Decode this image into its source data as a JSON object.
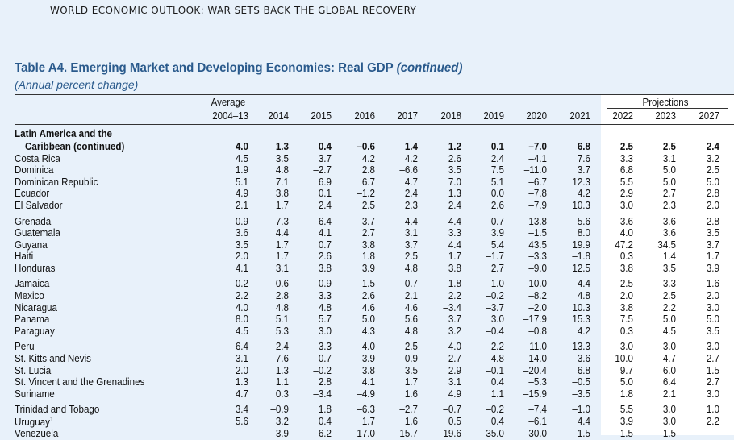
{
  "running_head": "WORLD ECONOMIC OUTLOOK: WAR SETS BACK THE GLOBAL RECOVERY",
  "table": {
    "title": "Table A4. Emerging Market and Developing Economies: Real GDP",
    "title_suffix": "(continued)",
    "subtitle": "(Annual percent change)",
    "header": {
      "average_label": "Average",
      "projections_label": "Projections",
      "columns": [
        "2004–13",
        "2014",
        "2015",
        "2016",
        "2017",
        "2018",
        "2019",
        "2020",
        "2021",
        "2022",
        "2023",
        "2027"
      ]
    },
    "group_label": "Latin America and the",
    "rows": [
      {
        "name": "Caribbean (continued)",
        "bold": true,
        "indent": true,
        "values": [
          "4.0",
          "1.3",
          "0.4",
          "–0.6",
          "1.4",
          "1.2",
          "0.1",
          "–7.0",
          "6.8",
          "2.5",
          "2.5",
          "2.4"
        ]
      },
      {
        "name": "Costa Rica",
        "values": [
          "4.5",
          "3.5",
          "3.7",
          "4.2",
          "4.2",
          "2.6",
          "2.4",
          "–4.1",
          "7.6",
          "3.3",
          "3.1",
          "3.2"
        ]
      },
      {
        "name": "Dominica",
        "values": [
          "1.9",
          "4.8",
          "–2.7",
          "2.8",
          "–6.6",
          "3.5",
          "7.5",
          "–11.0",
          "3.7",
          "6.8",
          "5.0",
          "2.5"
        ]
      },
      {
        "name": "Dominican Republic",
        "values": [
          "5.1",
          "7.1",
          "6.9",
          "6.7",
          "4.7",
          "7.0",
          "5.1",
          "–6.7",
          "12.3",
          "5.5",
          "5.0",
          "5.0"
        ]
      },
      {
        "name": "Ecuador",
        "values": [
          "4.9",
          "3.8",
          "0.1",
          "–1.2",
          "2.4",
          "1.3",
          "0.0",
          "–7.8",
          "4.2",
          "2.9",
          "2.7",
          "2.8"
        ]
      },
      {
        "name": "El Salvador",
        "values": [
          "2.1",
          "1.7",
          "2.4",
          "2.5",
          "2.3",
          "2.4",
          "2.6",
          "–7.9",
          "10.3",
          "3.0",
          "2.3",
          "2.0"
        ]
      },
      {
        "name": "Grenada",
        "gap": true,
        "values": [
          "0.9",
          "7.3",
          "6.4",
          "3.7",
          "4.4",
          "4.4",
          "0.7",
          "–13.8",
          "5.6",
          "3.6",
          "3.6",
          "2.8"
        ]
      },
      {
        "name": "Guatemala",
        "values": [
          "3.6",
          "4.4",
          "4.1",
          "2.7",
          "3.1",
          "3.3",
          "3.9",
          "–1.5",
          "8.0",
          "4.0",
          "3.6",
          "3.5"
        ]
      },
      {
        "name": "Guyana",
        "values": [
          "3.5",
          "1.7",
          "0.7",
          "3.8",
          "3.7",
          "4.4",
          "5.4",
          "43.5",
          "19.9",
          "47.2",
          "34.5",
          "3.7"
        ]
      },
      {
        "name": "Haiti",
        "values": [
          "2.0",
          "1.7",
          "2.6",
          "1.8",
          "2.5",
          "1.7",
          "–1.7",
          "–3.3",
          "–1.8",
          "0.3",
          "1.4",
          "1.7"
        ]
      },
      {
        "name": "Honduras",
        "values": [
          "4.1",
          "3.1",
          "3.8",
          "3.9",
          "4.8",
          "3.8",
          "2.7",
          "–9.0",
          "12.5",
          "3.8",
          "3.5",
          "3.9"
        ]
      },
      {
        "name": "Jamaica",
        "gap": true,
        "values": [
          "0.2",
          "0.6",
          "0.9",
          "1.5",
          "0.7",
          "1.8",
          "1.0",
          "–10.0",
          "4.4",
          "2.5",
          "3.3",
          "1.6"
        ]
      },
      {
        "name": "Mexico",
        "values": [
          "2.2",
          "2.8",
          "3.3",
          "2.6",
          "2.1",
          "2.2",
          "–0.2",
          "–8.2",
          "4.8",
          "2.0",
          "2.5",
          "2.0"
        ]
      },
      {
        "name": "Nicaragua",
        "values": [
          "4.0",
          "4.8",
          "4.8",
          "4.6",
          "4.6",
          "–3.4",
          "–3.7",
          "–2.0",
          "10.3",
          "3.8",
          "2.2",
          "3.0"
        ]
      },
      {
        "name": "Panama",
        "values": [
          "8.0",
          "5.1",
          "5.7",
          "5.0",
          "5.6",
          "3.7",
          "3.0",
          "–17.9",
          "15.3",
          "7.5",
          "5.0",
          "5.0"
        ]
      },
      {
        "name": "Paraguay",
        "values": [
          "4.5",
          "5.3",
          "3.0",
          "4.3",
          "4.8",
          "3.2",
          "–0.4",
          "–0.8",
          "4.2",
          "0.3",
          "4.5",
          "3.5"
        ]
      },
      {
        "name": "Peru",
        "gap": true,
        "values": [
          "6.4",
          "2.4",
          "3.3",
          "4.0",
          "2.5",
          "4.0",
          "2.2",
          "–11.0",
          "13.3",
          "3.0",
          "3.0",
          "3.0"
        ]
      },
      {
        "name": "St. Kitts and Nevis",
        "values": [
          "3.1",
          "7.6",
          "0.7",
          "3.9",
          "0.9",
          "2.7",
          "4.8",
          "–14.0",
          "–3.6",
          "10.0",
          "4.7",
          "2.7"
        ]
      },
      {
        "name": "St. Lucia",
        "values": [
          "2.0",
          "1.3",
          "–0.2",
          "3.8",
          "3.5",
          "2.9",
          "–0.1",
          "–20.4",
          "6.8",
          "9.7",
          "6.0",
          "1.5"
        ]
      },
      {
        "name": "St. Vincent and the Grenadines",
        "values": [
          "1.3",
          "1.1",
          "2.8",
          "4.1",
          "1.7",
          "3.1",
          "0.4",
          "–5.3",
          "–0.5",
          "5.0",
          "6.4",
          "2.7"
        ]
      },
      {
        "name": "Suriname",
        "values": [
          "4.7",
          "0.3",
          "–3.4",
          "–4.9",
          "1.6",
          "4.9",
          "1.1",
          "–15.9",
          "–3.5",
          "1.8",
          "2.1",
          "3.0"
        ]
      },
      {
        "name": "Trinidad and Tobago",
        "gap": true,
        "values": [
          "3.4",
          "–0.9",
          "1.8",
          "–6.3",
          "–2.7",
          "–0.7",
          "–0.2",
          "–7.4",
          "–1.0",
          "5.5",
          "3.0",
          "1.0"
        ]
      },
      {
        "name": "Uruguay",
        "footnote": "1",
        "values": [
          "5.6",
          "3.2",
          "0.4",
          "1.7",
          "1.6",
          "0.5",
          "0.4",
          "–6.1",
          "4.4",
          "3.9",
          "3.0",
          "2.2"
        ]
      },
      {
        "name": "Venezuela",
        "values": [
          "",
          "–3.9",
          "–6.2",
          "–17.0",
          "–15.7",
          "–19.6",
          "–35.0",
          "–30.0",
          "–1.5",
          "1.5",
          "1.5",
          ""
        ]
      }
    ]
  }
}
